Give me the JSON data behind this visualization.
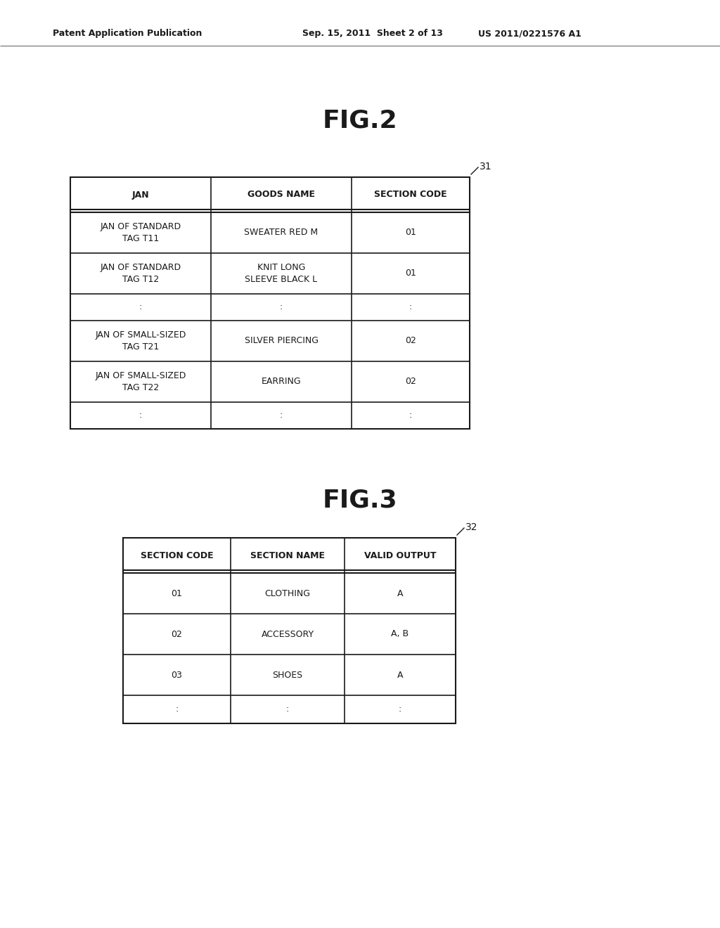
{
  "background_color": "#ffffff",
  "header_left": "Patent Application Publication",
  "header_mid": "Sep. 15, 2011  Sheet 2 of 13",
  "header_right": "US 2011/0221576 A1",
  "fig2_title": "FIG.2",
  "fig3_title": "FIG.3",
  "fig2_label": "31",
  "fig3_label": "32",
  "fig2_headers": [
    "JAN",
    "GOODS NAME",
    "SECTION CODE"
  ],
  "fig2_rows": [
    [
      "JAN OF STANDARD\nTAG T11",
      "SWEATER RED M",
      "01"
    ],
    [
      "JAN OF STANDARD\nTAG T12",
      "KNIT LONG\nSLEEVE BLACK L",
      "01"
    ],
    [
      ":",
      ":",
      ":"
    ],
    [
      "JAN OF SMALL-SIZED\nTAG T21",
      "SILVER PIERCING",
      "02"
    ],
    [
      "JAN OF SMALL-SIZED\nTAG T22",
      "EARRING",
      "02"
    ],
    [
      ":",
      ":",
      ":"
    ]
  ],
  "fig3_headers": [
    "SECTION CODE",
    "SECTION NAME",
    "VALID OUTPUT"
  ],
  "fig3_rows": [
    [
      "01",
      "CLOTHING",
      "A"
    ],
    [
      "02",
      "ACCESSORY",
      "A, B"
    ],
    [
      "03",
      "SHOES",
      "A"
    ],
    [
      ":",
      ":",
      ":"
    ]
  ],
  "header_fontsize": 9,
  "fig_title_fontsize": 26,
  "table_fontsize": 9,
  "label_fontsize": 10
}
